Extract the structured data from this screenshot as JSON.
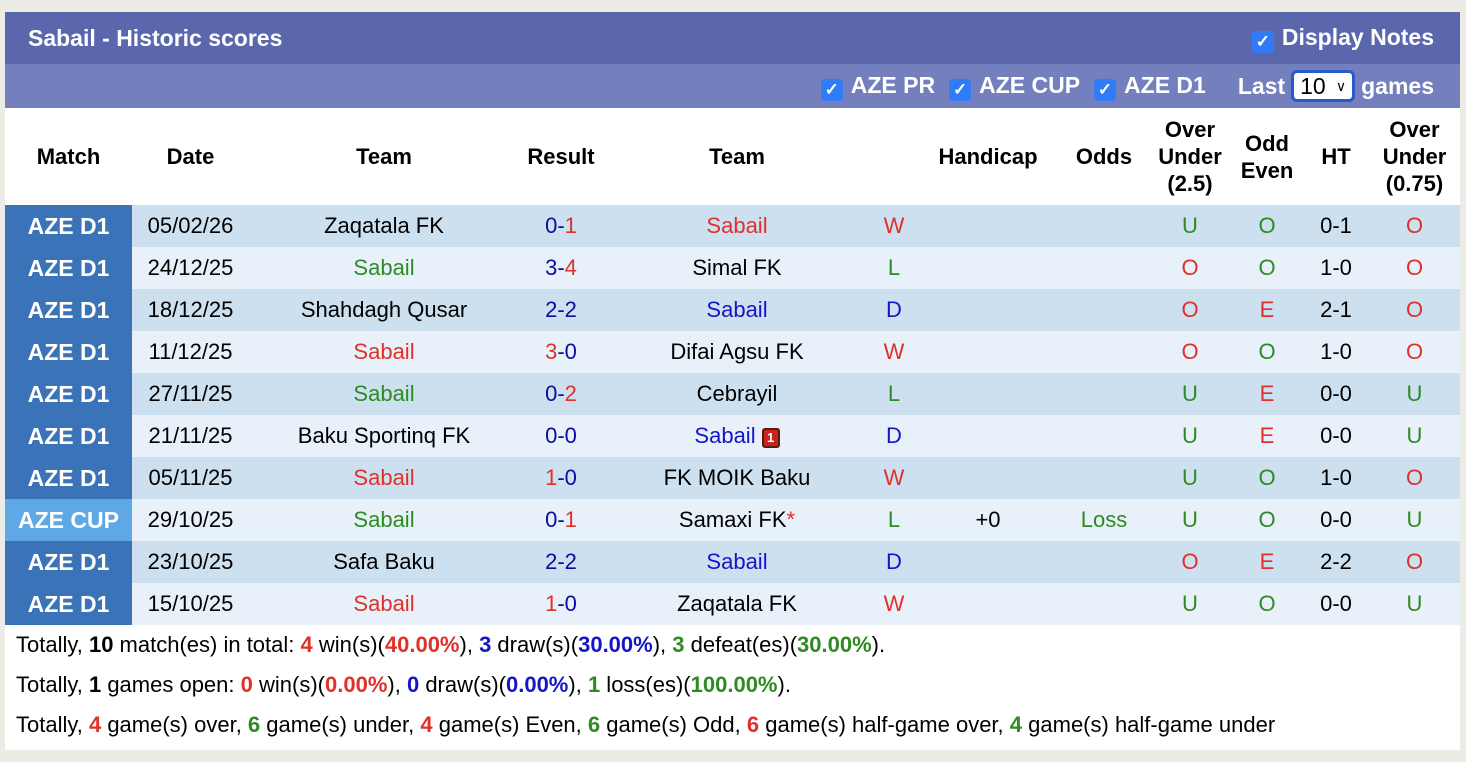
{
  "header": {
    "title": "Sabail - Historic scores",
    "display_notes": "Display Notes",
    "display_notes_checked": true
  },
  "filters": {
    "items": [
      {
        "label": "AZE PR",
        "checked": true
      },
      {
        "label": "AZE CUP",
        "checked": true
      },
      {
        "label": "AZE D1",
        "checked": true
      }
    ],
    "last_label": "Last",
    "last_value": "10",
    "games_label": "games"
  },
  "columns": [
    "Match",
    "Date",
    "Team",
    "Result",
    "Team",
    "",
    "Handicap",
    "Odds",
    "Over Under (2.5)",
    "Odd Even",
    "HT",
    "Over Under (0.75)"
  ],
  "colors": {
    "win": "#e0302a",
    "draw": "#1414c8",
    "loss": "#2e8a22",
    "d1": "#3b73b9",
    "cup": "#5fa8e6",
    "header": "#5a67ad"
  },
  "rows": [
    {
      "match": "AZE D1",
      "date": "05/02/26",
      "home": "Zaqatala FK",
      "home_c": "",
      "hs": "0",
      "as": "1",
      "win": "a",
      "away": "Sabail",
      "away_c": "red",
      "res": "W",
      "res_c": "red",
      "hcp": "",
      "odds": "",
      "ou": "U",
      "ou_c": "green",
      "oe": "O",
      "oe_c": "green",
      "ht": "0-1",
      "ou2": "O",
      "ou2_c": "red"
    },
    {
      "match": "AZE D1",
      "date": "24/12/25",
      "home": "Sabail",
      "home_c": "green",
      "hs": "3",
      "as": "4",
      "win": "a",
      "away": "Simal FK",
      "away_c": "",
      "res": "L",
      "res_c": "green",
      "hcp": "",
      "odds": "",
      "ou": "O",
      "ou_c": "red",
      "oe": "O",
      "oe_c": "green",
      "ht": "1-0",
      "ou2": "O",
      "ou2_c": "red"
    },
    {
      "match": "AZE D1",
      "date": "18/12/25",
      "home": "Shahdagh Qusar",
      "home_c": "",
      "hs": "2",
      "as": "2",
      "win": "",
      "away": "Sabail",
      "away_c": "blue",
      "res": "D",
      "res_c": "blue",
      "hcp": "",
      "odds": "",
      "ou": "O",
      "ou_c": "red",
      "oe": "E",
      "oe_c": "red",
      "ht": "2-1",
      "ou2": "O",
      "ou2_c": "red"
    },
    {
      "match": "AZE D1",
      "date": "11/12/25",
      "home": "Sabail",
      "home_c": "red",
      "hs": "3",
      "as": "0",
      "win": "h",
      "away": "Difai Agsu FK",
      "away_c": "",
      "res": "W",
      "res_c": "red",
      "hcp": "",
      "odds": "",
      "ou": "O",
      "ou_c": "red",
      "oe": "O",
      "oe_c": "green",
      "ht": "1-0",
      "ou2": "O",
      "ou2_c": "red"
    },
    {
      "match": "AZE D1",
      "date": "27/11/25",
      "home": "Sabail",
      "home_c": "green",
      "hs": "0",
      "as": "2",
      "win": "a",
      "away": "Cebrayil",
      "away_c": "",
      "res": "L",
      "res_c": "green",
      "hcp": "",
      "odds": "",
      "ou": "U",
      "ou_c": "green",
      "oe": "E",
      "oe_c": "red",
      "ht": "0-0",
      "ou2": "U",
      "ou2_c": "green"
    },
    {
      "match": "AZE D1",
      "date": "21/11/25",
      "home": "Baku Sportinq FK",
      "home_c": "",
      "hs": "0",
      "as": "0",
      "win": "",
      "away": "Sabail",
      "away_c": "blue",
      "red_card": "1",
      "res": "D",
      "res_c": "blue",
      "hcp": "",
      "odds": "",
      "ou": "U",
      "ou_c": "green",
      "oe": "E",
      "oe_c": "red",
      "ht": "0-0",
      "ou2": "U",
      "ou2_c": "green"
    },
    {
      "match": "AZE D1",
      "date": "05/11/25",
      "home": "Sabail",
      "home_c": "red",
      "hs": "1",
      "as": "0",
      "win": "h",
      "away": "FK MOIK Baku",
      "away_c": "",
      "res": "W",
      "res_c": "red",
      "hcp": "",
      "odds": "",
      "ou": "U",
      "ou_c": "green",
      "oe": "O",
      "oe_c": "green",
      "ht": "1-0",
      "ou2": "O",
      "ou2_c": "red"
    },
    {
      "match": "AZE CUP",
      "date": "29/10/25",
      "home": "Sabail",
      "home_c": "green",
      "hs": "0",
      "as": "1",
      "win": "a",
      "away": "Samaxi FK",
      "away_mark": "*",
      "away_c": "",
      "res": "L",
      "res_c": "green",
      "hcp": "+0",
      "odds": "Loss",
      "odds_c": "green",
      "ou": "U",
      "ou_c": "green",
      "oe": "O",
      "oe_c": "green",
      "ht": "0-0",
      "ou2": "U",
      "ou2_c": "green"
    },
    {
      "match": "AZE D1",
      "date": "23/10/25",
      "home": "Safa Baku",
      "home_c": "",
      "hs": "2",
      "as": "2",
      "win": "",
      "away": "Sabail",
      "away_c": "blue",
      "res": "D",
      "res_c": "blue",
      "hcp": "",
      "odds": "",
      "ou": "O",
      "ou_c": "red",
      "oe": "E",
      "oe_c": "red",
      "ht": "2-2",
      "ou2": "O",
      "ou2_c": "red"
    },
    {
      "match": "AZE D1",
      "date": "15/10/25",
      "home": "Sabail",
      "home_c": "red",
      "hs": "1",
      "as": "0",
      "win": "h",
      "away": "Zaqatala FK",
      "away_c": "",
      "res": "W",
      "res_c": "red",
      "hcp": "",
      "odds": "",
      "ou": "U",
      "ou_c": "green",
      "oe": "O",
      "oe_c": "green",
      "ht": "0-0",
      "ou2": "U",
      "ou2_c": "green"
    }
  ],
  "summary": [
    [
      [
        "Totally, ",
        ""
      ],
      [
        "10",
        "b"
      ],
      [
        " match(es) in total: ",
        ""
      ],
      [
        "4",
        "red b"
      ],
      [
        " win(s)(",
        ""
      ],
      [
        "40.00%",
        "red b"
      ],
      [
        "), ",
        ""
      ],
      [
        "3",
        "blue b"
      ],
      [
        " draw(s)(",
        ""
      ],
      [
        "30.00%",
        "blue b"
      ],
      [
        "), ",
        ""
      ],
      [
        "3",
        "green b"
      ],
      [
        " defeat(es)(",
        ""
      ],
      [
        "30.00%",
        "green b"
      ],
      [
        ").",
        ""
      ]
    ],
    [
      [
        "Totally, ",
        ""
      ],
      [
        "1",
        "b"
      ],
      [
        " games open: ",
        ""
      ],
      [
        "0",
        "red b"
      ],
      [
        " win(s)(",
        ""
      ],
      [
        "0.00%",
        "red b"
      ],
      [
        "), ",
        ""
      ],
      [
        "0",
        "blue b"
      ],
      [
        " draw(s)(",
        ""
      ],
      [
        "0.00%",
        "blue b"
      ],
      [
        "), ",
        ""
      ],
      [
        "1",
        "green b"
      ],
      [
        " loss(es)(",
        ""
      ],
      [
        "100.00%",
        "green b"
      ],
      [
        ").",
        ""
      ]
    ],
    [
      [
        "Totally, ",
        ""
      ],
      [
        "4",
        "red b"
      ],
      [
        " game(s) over, ",
        ""
      ],
      [
        "6",
        "green b"
      ],
      [
        " game(s) under, ",
        ""
      ],
      [
        "4",
        "red b"
      ],
      [
        " game(s) Even, ",
        ""
      ],
      [
        "6",
        "green b"
      ],
      [
        " game(s) Odd, ",
        ""
      ],
      [
        "6",
        "red b"
      ],
      [
        " game(s) half-game over, ",
        ""
      ],
      [
        "4",
        "green b"
      ],
      [
        " game(s) half-game under",
        ""
      ]
    ]
  ]
}
